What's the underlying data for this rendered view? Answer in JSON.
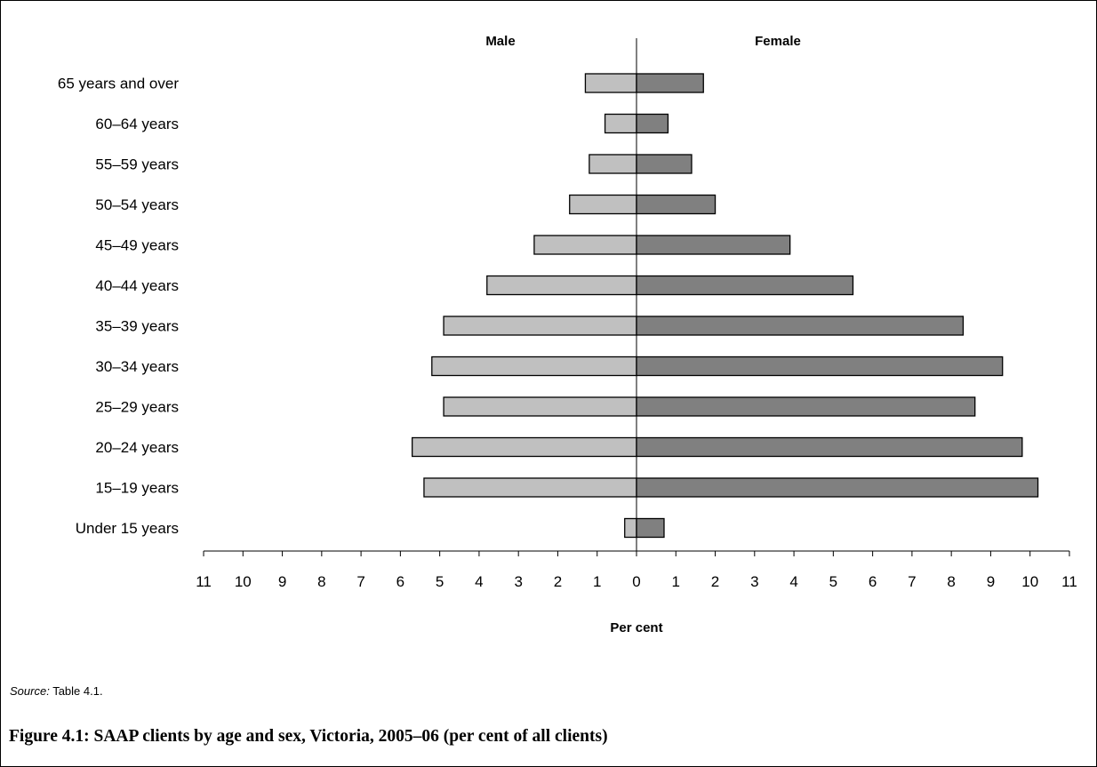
{
  "chart_data": {
    "type": "bar",
    "orientation": "horizontal",
    "layout": "population-pyramid",
    "categories": [
      "Under 15 years",
      "15–19 years",
      "20–24 years",
      "25–29 years",
      "30–34 years",
      "35–39 years",
      "40–44 years",
      "45–49 years",
      "50–54 years",
      "55–59 years",
      "60–64 years",
      "65 years and over"
    ],
    "series": [
      {
        "name": "Male",
        "color": "#c0c0c0",
        "side": "left",
        "values": [
          0.3,
          5.4,
          5.7,
          4.9,
          5.2,
          4.9,
          3.8,
          2.6,
          1.7,
          1.2,
          0.8,
          1.3
        ]
      },
      {
        "name": "Female",
        "color": "#808080",
        "side": "right",
        "values": [
          0.7,
          10.2,
          9.8,
          8.6,
          9.3,
          8.3,
          5.5,
          3.9,
          2.0,
          1.4,
          0.8,
          1.7
        ]
      }
    ],
    "xlabel": "Per cent",
    "xlim": [
      -11,
      11
    ],
    "tick_labels": [
      "11",
      "10",
      "9",
      "8",
      "7",
      "6",
      "5",
      "4",
      "3",
      "2",
      "1",
      "0",
      "1",
      "2",
      "3",
      "4",
      "5",
      "6",
      "7",
      "8",
      "9",
      "10",
      "11"
    ],
    "grid": false,
    "legend": "none"
  },
  "source": {
    "label": "Source:",
    "text": " Table 4.1."
  },
  "caption": "Figure 4.1: SAAP clients by age and sex, Victoria, 2005–06 (per cent of all clients)"
}
